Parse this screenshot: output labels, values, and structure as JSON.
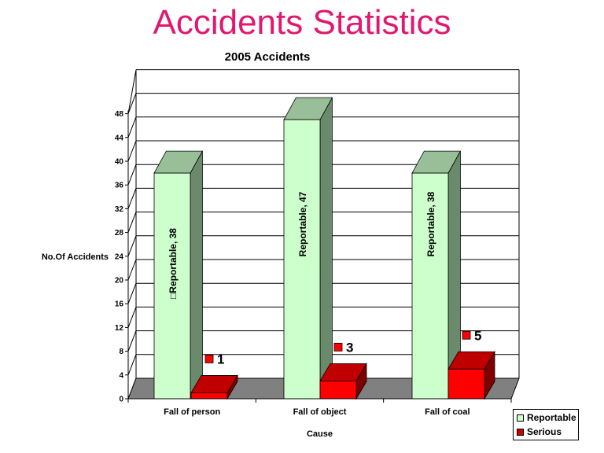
{
  "slide": {
    "title": "Accidents Statistics",
    "subtitle": "2005 Accidents"
  },
  "colors": {
    "title": "#e0186f",
    "reportable_front": "#ccffcc",
    "reportable_top": "#99bf99",
    "reportable_side": "#6b8a6b",
    "serious_front": "#ff0000",
    "serious_top": "#c00000",
    "serious_side": "#800000",
    "floor": "#808080"
  },
  "axes": {
    "y_title": "No.Of Accidents",
    "x_title": "Cause",
    "y_ticks": [
      "0",
      "4",
      "8",
      "12",
      "16",
      "20",
      "24",
      "28",
      "32",
      "36",
      "40",
      "44",
      "48"
    ]
  },
  "categories": [
    "Fall of person",
    "Fall of object",
    "Fall of coal"
  ],
  "bar_labels": {
    "reportable": [
      "Reportable, 38",
      "Reportable, 47",
      "Reportable, 38"
    ],
    "serious": [
      "1",
      "3",
      "5"
    ]
  },
  "legend": {
    "items": [
      {
        "label": "Reportable",
        "color": "#ccffcc"
      },
      {
        "label": "Serious",
        "color": "#cc0000"
      }
    ]
  },
  "chart_data": {
    "type": "bar",
    "title": "2005 Accidents",
    "subtitle": "Accidents Statistics",
    "categories": [
      "Fall of person",
      "Fall of object",
      "Fall of coal"
    ],
    "series": [
      {
        "name": "Reportable",
        "values": [
          38,
          47,
          38
        ]
      },
      {
        "name": "Serious",
        "values": [
          1,
          3,
          5
        ]
      }
    ],
    "xlabel": "Cause",
    "ylabel": "No.Of Accidents",
    "ylim": [
      0,
      48
    ],
    "yticks": [
      0,
      4,
      8,
      12,
      16,
      20,
      24,
      28,
      32,
      36,
      40,
      44,
      48
    ],
    "grid": true,
    "legend_position": "bottom-right",
    "style": "3d-clustered-column",
    "data_labels": [
      "Reportable, 38",
      "Reportable, 47",
      "Reportable, 38",
      "1",
      "3",
      "5"
    ]
  }
}
